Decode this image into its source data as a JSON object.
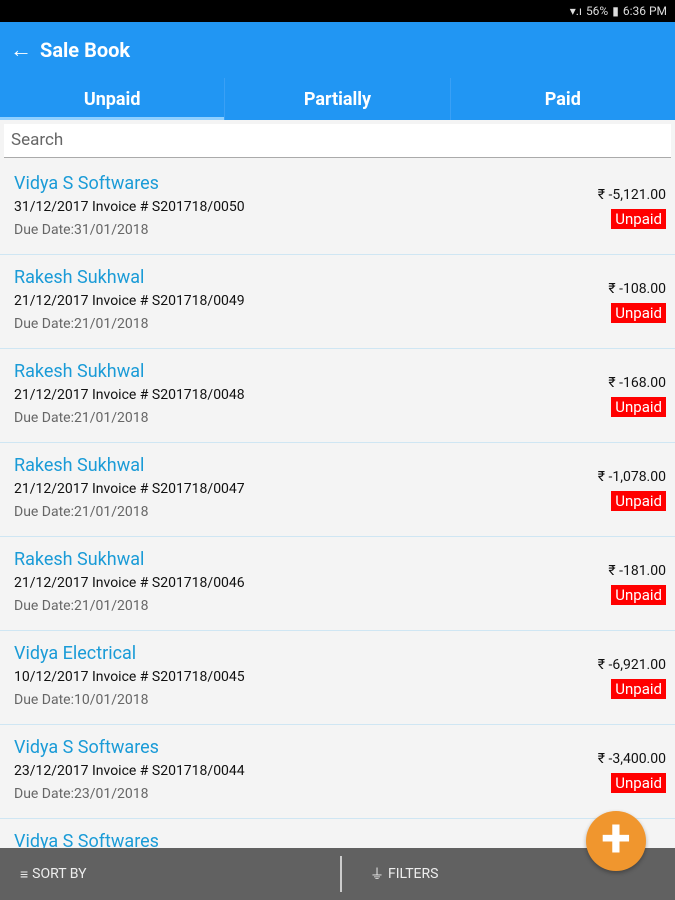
{
  "status": {
    "battery": "56%",
    "time": "6:36 PM"
  },
  "header": {
    "title": "Sale Book"
  },
  "tabs": [
    {
      "label": "Unpaid"
    },
    {
      "label": "Partially"
    },
    {
      "label": "Paid"
    }
  ],
  "search": {
    "placeholder": "Search"
  },
  "invoices": [
    {
      "name": "Vidya S Softwares",
      "line": "31/12/2017 Invoice # S201718/0050",
      "due": "Due Date:31/01/2018",
      "amount": "₹ -5,121.00",
      "status": "Unpaid"
    },
    {
      "name": "Rakesh Sukhwal",
      "line": "21/12/2017 Invoice # S201718/0049",
      "due": "Due Date:21/01/2018",
      "amount": "₹ -108.00",
      "status": "Unpaid"
    },
    {
      "name": "Rakesh Sukhwal",
      "line": "21/12/2017 Invoice # S201718/0048",
      "due": "Due Date:21/01/2018",
      "amount": "₹ -168.00",
      "status": "Unpaid"
    },
    {
      "name": "Rakesh Sukhwal",
      "line": "21/12/2017 Invoice # S201718/0047",
      "due": "Due Date:21/01/2018",
      "amount": "₹ -1,078.00",
      "status": "Unpaid"
    },
    {
      "name": "Rakesh Sukhwal",
      "line": "21/12/2017 Invoice # S201718/0046",
      "due": "Due Date:21/01/2018",
      "amount": "₹ -181.00",
      "status": "Unpaid"
    },
    {
      "name": "Vidya Electrical",
      "line": "10/12/2017 Invoice # S201718/0045",
      "due": "Due Date:10/01/2018",
      "amount": "₹ -6,921.00",
      "status": "Unpaid"
    },
    {
      "name": "Vidya S Softwares",
      "line": "23/12/2017 Invoice # S201718/0044",
      "due": "Due Date:23/01/2018",
      "amount": "₹ -3,400.00",
      "status": "Unpaid"
    },
    {
      "name": "Vidya S Softwares"
    }
  ],
  "bottom": {
    "sort_label": "SORT BY",
    "filter_label": "FILTERS"
  },
  "colors": {
    "primary": "#2196f3",
    "link": "#1a9bd7",
    "badge": "#ff0000",
    "fab": "#f0962e"
  }
}
